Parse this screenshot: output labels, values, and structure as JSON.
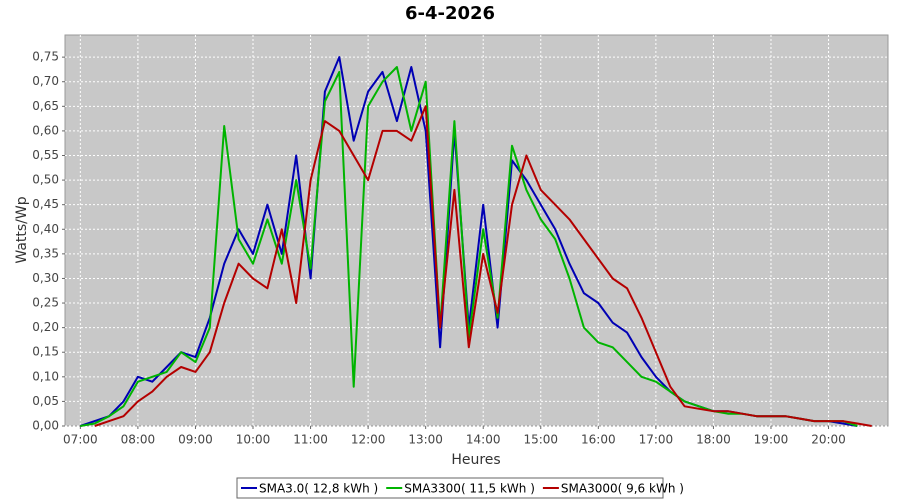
{
  "chart_data": {
    "type": "line",
    "title": "6-4-2026",
    "x_label": "Heures",
    "y_label": "Watts/Wp",
    "x": [
      "07:00",
      "07:15",
      "07:30",
      "07:45",
      "08:00",
      "08:15",
      "08:30",
      "08:45",
      "09:00",
      "09:15",
      "09:30",
      "09:45",
      "10:00",
      "10:15",
      "10:30",
      "10:45",
      "11:00",
      "11:15",
      "11:30",
      "11:45",
      "12:00",
      "12:15",
      "12:30",
      "12:45",
      "13:00",
      "13:15",
      "13:30",
      "13:45",
      "14:00",
      "14:15",
      "14:30",
      "14:45",
      "15:00",
      "15:15",
      "15:30",
      "15:45",
      "16:00",
      "16:15",
      "16:30",
      "16:45",
      "17:00",
      "17:15",
      "17:30",
      "17:45",
      "18:00",
      "18:15",
      "18:30",
      "18:45",
      "19:00",
      "19:15",
      "19:30",
      "19:45",
      "20:00",
      "20:15",
      "20:30",
      "20:45"
    ],
    "series": [
      {
        "name": "SMA3.0( 12,8 kWh )",
        "color": "#0000b4",
        "values": [
          0,
          0.01,
          0.02,
          0.05,
          0.1,
          0.09,
          0.12,
          0.15,
          0.14,
          0.22,
          0.33,
          0.4,
          0.35,
          0.45,
          0.35,
          0.55,
          0.3,
          0.68,
          0.75,
          0.58,
          0.68,
          0.72,
          0.62,
          0.73,
          0.6,
          0.16,
          0.6,
          0.2,
          0.45,
          0.2,
          0.54,
          0.5,
          0.45,
          0.4,
          0.33,
          0.27,
          0.25,
          0.21,
          0.19,
          0.14,
          0.1,
          0.07,
          0.05,
          0.04,
          0.03,
          0.03,
          0.025,
          0.02,
          0.02,
          0.02,
          0.015,
          0.01,
          0.01,
          0.005,
          0,
          null
        ]
      },
      {
        "name": "SMA3300( 11,5 kWh )",
        "color": "#00b400",
        "values": [
          0,
          0.005,
          0.02,
          0.04,
          0.09,
          0.1,
          0.11,
          0.15,
          0.13,
          0.2,
          0.61,
          0.38,
          0.33,
          0.42,
          0.33,
          0.5,
          0.32,
          0.66,
          0.72,
          0.08,
          0.65,
          0.7,
          0.73,
          0.6,
          0.7,
          0.2,
          0.62,
          0.18,
          0.4,
          0.22,
          0.57,
          0.48,
          0.42,
          0.38,
          0.3,
          0.2,
          0.17,
          0.16,
          0.13,
          0.1,
          0.09,
          0.07,
          0.05,
          0.04,
          0.03,
          0.025,
          0.025,
          0.02,
          0.02,
          0.02,
          0.015,
          0.01,
          0.01,
          0.01,
          0,
          null
        ]
      },
      {
        "name": "SMA3000( 9,6 kWh )",
        "color": "#b40000",
        "values": [
          null,
          0,
          0.01,
          0.02,
          0.05,
          0.07,
          0.1,
          0.12,
          0.11,
          0.15,
          0.25,
          0.33,
          0.3,
          0.28,
          0.4,
          0.25,
          0.5,
          0.62,
          0.6,
          0.55,
          0.5,
          0.6,
          0.6,
          0.58,
          0.65,
          0.2,
          0.48,
          0.16,
          0.35,
          0.23,
          0.45,
          0.55,
          0.48,
          0.45,
          0.42,
          0.38,
          0.34,
          0.3,
          0.28,
          0.22,
          0.15,
          0.08,
          0.04,
          0.035,
          0.03,
          0.03,
          0.025,
          0.02,
          0.02,
          0.02,
          0.015,
          0.01,
          0.01,
          0.01,
          0.005,
          0
        ]
      }
    ],
    "xlim": [
      "06:44",
      "21:02"
    ],
    "xticks": [
      "07:00",
      "08:00",
      "09:00",
      "10:00",
      "11:00",
      "12:00",
      "13:00",
      "14:00",
      "15:00",
      "16:00",
      "17:00",
      "18:00",
      "19:00",
      "20:00"
    ],
    "ylim": [
      0,
      0.795
    ],
    "yticks": [
      {
        "value": 0,
        "label": "0,00"
      },
      {
        "value": 0.05,
        "label": "0,05"
      },
      {
        "value": 0.1,
        "label": "0,10"
      },
      {
        "value": 0.15,
        "label": "0,15"
      },
      {
        "value": 0.2,
        "label": "0,20"
      },
      {
        "value": 0.25,
        "label": "0,25"
      },
      {
        "value": 0.3,
        "label": "0,30"
      },
      {
        "value": 0.35,
        "label": "0,35"
      },
      {
        "value": 0.4,
        "label": "0,40"
      },
      {
        "value": 0.45,
        "label": "0,45"
      },
      {
        "value": 0.5,
        "label": "0,50"
      },
      {
        "value": 0.55,
        "label": "0,55"
      },
      {
        "value": 0.6,
        "label": "0,60"
      },
      {
        "value": 0.65,
        "label": "0,65"
      },
      {
        "value": 0.7,
        "label": "0,70"
      },
      {
        "value": 0.75,
        "label": "0,75"
      }
    ],
    "grid": true
  }
}
